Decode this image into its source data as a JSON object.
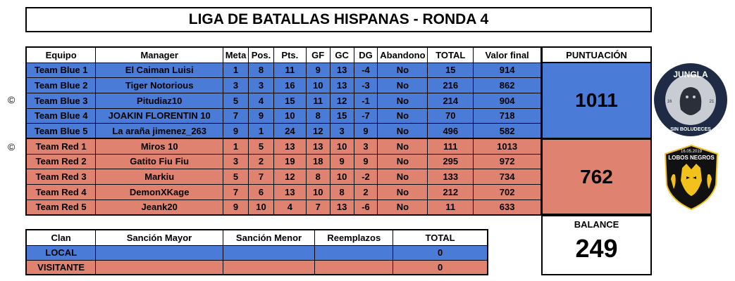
{
  "title": "LIGA DE BATALLAS HISPANAS - RONDA 4",
  "headers": [
    "Equipo",
    "Manager",
    "Meta",
    "Pos.",
    "Pts.",
    "GF",
    "GC",
    "DG",
    "Abandono",
    "TOTAL",
    "Valor final"
  ],
  "score_header": "PUNTUACIÓN",
  "blue_rows": [
    [
      "Team Blue 1",
      "El Caiman Luisi",
      "1",
      "8",
      "11",
      "9",
      "13",
      "-4",
      "No",
      "15",
      "914"
    ],
    [
      "Team Blue 2",
      "Tiger Notorious",
      "3",
      "3",
      "16",
      "10",
      "13",
      "-3",
      "No",
      "216",
      "862"
    ],
    [
      "Team Blue 3",
      "Pitudiaz10",
      "5",
      "4",
      "15",
      "11",
      "12",
      "-1",
      "No",
      "214",
      "904"
    ],
    [
      "Team Blue 4",
      "JOAKIN FLORENTIN 10",
      "7",
      "9",
      "10",
      "8",
      "15",
      "-7",
      "No",
      "70",
      "718"
    ],
    [
      "Team Blue 5",
      "La araña jimenez_263",
      "9",
      "1",
      "24",
      "12",
      "3",
      "9",
      "No",
      "496",
      "582"
    ]
  ],
  "red_rows": [
    [
      "Team Red 1",
      "Miros 10",
      "1",
      "5",
      "13",
      "13",
      "10",
      "3",
      "No",
      "111",
      "1013"
    ],
    [
      "Team Red 2",
      "Gatito Fiu Fiu",
      "3",
      "2",
      "19",
      "18",
      "9",
      "9",
      "No",
      "295",
      "972"
    ],
    [
      "Team Red 3",
      "Markiu",
      "5",
      "7",
      "12",
      "8",
      "10",
      "-2",
      "No",
      "133",
      "734"
    ],
    [
      "Team Red 4",
      "DemonXKage",
      "7",
      "6",
      "13",
      "10",
      "8",
      "2",
      "No",
      "212",
      "702"
    ],
    [
      "Team Red 5",
      "Jeank20",
      "9",
      "10",
      "4",
      "7",
      "13",
      "-6",
      "No",
      "11",
      "633"
    ]
  ],
  "blue_score": "1011",
  "red_score": "762",
  "balance_label": "BALANCE",
  "balance_value": "249",
  "copyright_symbol": "©",
  "sanctions": {
    "headers": [
      "Clan",
      "Sanción Mayor",
      "Sanción Menor",
      "Reemplazos",
      "TOTAL"
    ],
    "rows": [
      [
        "LOCAL",
        "",
        "",
        "",
        "0"
      ],
      [
        "VISITANTE",
        "",
        "",
        "",
        "0"
      ]
    ]
  },
  "logos": {
    "jungla": {
      "text_top": "JUNGLA",
      "text_bottom": "SIN BOLUDECES",
      "left_num": "16",
      "right_num": "21",
      "colors": {
        "outer": "#1f2a44",
        "inner": "#c9ccd2"
      }
    },
    "lobos": {
      "date": "16.05.2019",
      "text": "LOBOS NEGROS",
      "colors": {
        "bg": "#111111",
        "accent": "#f2c21b"
      }
    }
  },
  "colors": {
    "blue": "#4a7bd6",
    "red": "#e08270"
  }
}
